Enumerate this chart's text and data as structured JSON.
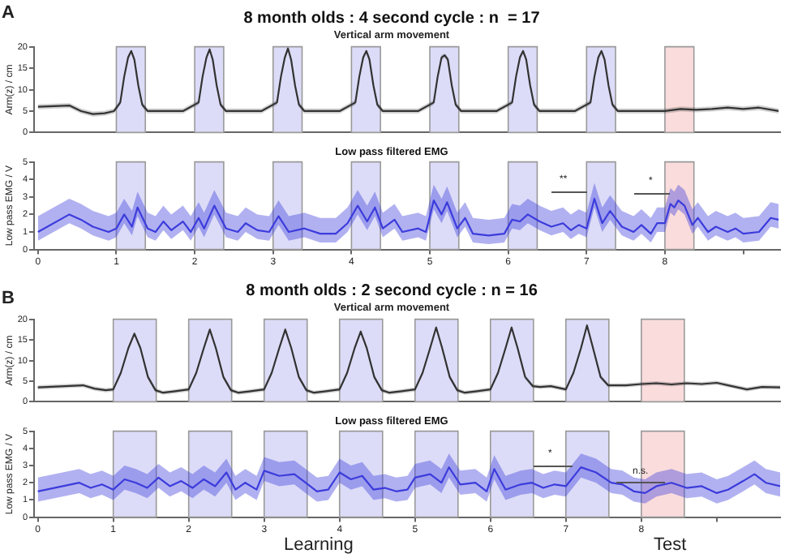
{
  "chart_data": [
    {
      "type": "line",
      "title": "8 month olds : 4 second cycle : n  = 17",
      "subtitle": "Vertical arm movement",
      "ylabel": "Arm(z) / cm",
      "annotations": [
        "A"
      ],
      "xlim": [
        -0.05,
        9.47
      ],
      "ylim": [
        0,
        20
      ],
      "yticks": [
        0,
        5,
        10,
        15,
        20
      ],
      "tick_labels": "y",
      "bands": [
        {
          "axis": "x",
          "from": 1,
          "to": 1.37,
          "color": "#dcdcf8"
        },
        {
          "axis": "x",
          "from": 2,
          "to": 2.37,
          "color": "#dcdcf8"
        },
        {
          "axis": "x",
          "from": 3,
          "to": 3.37,
          "color": "#dcdcf8"
        },
        {
          "axis": "x",
          "from": 4,
          "to": 4.37,
          "color": "#dcdcf8"
        },
        {
          "axis": "x",
          "from": 5,
          "to": 5.37,
          "color": "#dcdcf8"
        },
        {
          "axis": "x",
          "from": 6,
          "to": 6.37,
          "color": "#dcdcf8"
        },
        {
          "axis": "x",
          "from": 7,
          "to": 7.37,
          "color": "#dcdcf8"
        },
        {
          "axis": "x",
          "from": 8,
          "to": 8.37,
          "color": "#fadcdc"
        }
      ],
      "series": [
        {
          "color": "#333333",
          "x": [
            0,
            0.4,
            0.55,
            0.7,
            0.85,
            0.97,
            1.05,
            1.1,
            1.15,
            1.19,
            1.23,
            1.28,
            1.33,
            1.4,
            1.6,
            1.85,
            2.05,
            2.1,
            2.15,
            2.19,
            2.23,
            2.28,
            2.33,
            2.4,
            2.6,
            2.85,
            3.05,
            3.1,
            3.15,
            3.19,
            3.23,
            3.28,
            3.33,
            3.4,
            3.6,
            3.85,
            4.05,
            4.1,
            4.15,
            4.19,
            4.23,
            4.28,
            4.33,
            4.4,
            4.6,
            4.85,
            5.05,
            5.1,
            5.15,
            5.19,
            5.23,
            5.28,
            5.33,
            5.4,
            5.6,
            5.85,
            6.05,
            6.1,
            6.15,
            6.19,
            6.23,
            6.28,
            6.33,
            6.4,
            6.6,
            6.85,
            7.05,
            7.1,
            7.15,
            7.19,
            7.23,
            7.28,
            7.33,
            7.4,
            7.6,
            7.85,
            8.0,
            8.2,
            8.4,
            8.6,
            8.8,
            9.0,
            9.2,
            9.45
          ],
          "values": [
            6,
            6.3,
            5,
            4.3,
            4.5,
            5,
            7,
            13,
            17.5,
            19,
            17,
            11,
            6.5,
            5,
            5,
            5,
            7,
            13,
            17.5,
            19.4,
            17,
            11,
            6.5,
            5,
            5,
            5,
            7,
            13,
            17.5,
            19.6,
            17,
            11,
            6.5,
            5,
            5,
            5,
            7,
            13,
            17.5,
            19,
            17,
            11,
            6.5,
            5,
            5,
            5,
            7,
            13,
            17.5,
            18,
            17,
            11,
            6.5,
            5,
            5,
            5,
            7,
            13,
            17.5,
            19,
            17,
            11,
            6.5,
            5,
            5,
            5,
            7,
            13,
            17.5,
            19,
            17,
            11,
            6.5,
            5,
            5,
            5,
            5,
            5.5,
            5.3,
            5.5,
            5.8,
            5.5,
            5.8,
            5
          ],
          "lower": [
            5.4,
            5.7,
            4.4,
            3.7,
            3.9,
            4.4,
            6.4,
            12.4,
            16.9,
            18.4,
            16.4,
            10.4,
            5.9,
            4.4,
            4.4,
            4.4,
            6.4,
            12.4,
            16.9,
            18.8,
            16.4,
            10.4,
            5.9,
            4.4,
            4.4,
            4.4,
            6.4,
            12.4,
            16.9,
            19.0,
            16.4,
            10.4,
            5.9,
            4.4,
            4.4,
            4.4,
            6.4,
            12.4,
            16.9,
            18.4,
            16.4,
            10.4,
            5.9,
            4.4,
            4.4,
            4.4,
            6.4,
            12.4,
            16.9,
            17.4,
            16.4,
            10.4,
            5.9,
            4.4,
            4.4,
            4.4,
            6.4,
            12.4,
            16.9,
            18.4,
            16.4,
            10.4,
            5.9,
            4.4,
            4.4,
            4.4,
            6.4,
            12.4,
            16.9,
            18.4,
            16.4,
            10.4,
            5.9,
            4.4,
            4.4,
            4.4,
            4.4,
            4.9,
            4.7,
            4.9,
            5.2,
            4.9,
            5.2,
            4.4
          ],
          "upper": [
            6.6,
            6.9,
            5.6,
            4.9,
            5.1,
            5.6,
            7.6,
            13.6,
            18.1,
            19.4,
            17.6,
            11.6,
            7.1,
            5.6,
            5.6,
            5.6,
            7.6,
            13.6,
            18.1,
            19.8,
            17.6,
            11.6,
            7.1,
            5.6,
            5.6,
            5.6,
            7.6,
            13.6,
            18.1,
            20,
            17.6,
            11.6,
            7.1,
            5.6,
            5.6,
            5.6,
            7.6,
            13.6,
            18.1,
            19.4,
            17.6,
            11.6,
            7.1,
            5.6,
            5.6,
            5.6,
            7.6,
            13.6,
            18.1,
            18.4,
            17.6,
            11.6,
            7.1,
            5.6,
            5.6,
            5.6,
            7.6,
            13.6,
            18.1,
            19.4,
            17.6,
            11.6,
            7.1,
            5.6,
            5.6,
            5.6,
            7.6,
            13.6,
            18.1,
            19.4,
            17.6,
            11.6,
            7.1,
            5.6,
            5.6,
            5.6,
            5.6,
            6.1,
            5.9,
            6.1,
            6.4,
            6.1,
            6.4,
            5.6
          ]
        }
      ]
    },
    {
      "type": "line",
      "title": "Low pass filtered EMG",
      "ylabel": "Low pass EMG / V",
      "annotations": [
        "**",
        "*"
      ],
      "xlim": [
        -0.05,
        9.47
      ],
      "ylim": [
        0,
        5
      ],
      "yticks": [
        0,
        1,
        2,
        3,
        4,
        5
      ],
      "xticks": [
        0,
        1,
        2,
        3,
        4,
        5,
        6,
        7,
        8,
        {
          "value": 9,
          "label": null
        }
      ],
      "bands": [
        {
          "axis": "x",
          "from": 1,
          "to": 1.37,
          "color": "#dcdcf8"
        },
        {
          "axis": "x",
          "from": 2,
          "to": 2.37,
          "color": "#dcdcf8"
        },
        {
          "axis": "x",
          "from": 3,
          "to": 3.37,
          "color": "#dcdcf8"
        },
        {
          "axis": "x",
          "from": 4,
          "to": 4.37,
          "color": "#dcdcf8"
        },
        {
          "axis": "x",
          "from": 5,
          "to": 5.37,
          "color": "#dcdcf8"
        },
        {
          "axis": "x",
          "from": 6,
          "to": 6.37,
          "color": "#dcdcf8"
        },
        {
          "axis": "x",
          "from": 7,
          "to": 7.37,
          "color": "#dcdcf8"
        },
        {
          "axis": "x",
          "from": 8,
          "to": 8.37,
          "color": "#fadcdc"
        }
      ],
      "series": [
        {
          "color": "#3c3cdc",
          "x": [
            0,
            0.4,
            0.55,
            0.7,
            0.9,
            1.0,
            1.1,
            1.2,
            1.27,
            1.4,
            1.5,
            1.6,
            1.7,
            1.85,
            1.95,
            2.05,
            2.12,
            2.25,
            2.4,
            2.55,
            2.65,
            2.8,
            2.95,
            3.07,
            3.2,
            3.4,
            3.6,
            3.8,
            3.95,
            4.08,
            4.2,
            4.3,
            4.4,
            4.55,
            4.65,
            4.85,
            4.95,
            5.05,
            5.15,
            5.22,
            5.35,
            5.45,
            5.55,
            5.75,
            5.95,
            6.05,
            6.15,
            6.25,
            6.4,
            6.55,
            6.7,
            6.8,
            6.9,
            7.0,
            7.1,
            7.2,
            7.3,
            7.45,
            7.6,
            7.7,
            7.82,
            7.9,
            8.0,
            8.07,
            8.12,
            8.17,
            8.25,
            8.35,
            8.42,
            8.55,
            8.65,
            8.8,
            8.9,
            9.0,
            9.2,
            9.35,
            9.45
          ],
          "values": [
            1.0,
            2.0,
            1.7,
            1.3,
            1.0,
            1.2,
            2.0,
            1.3,
            2.4,
            1.2,
            1.0,
            1.6,
            1.1,
            1.6,
            1.0,
            1.8,
            1.2,
            2.5,
            1.2,
            1.0,
            1.5,
            1.1,
            1.0,
            1.9,
            1.0,
            1.2,
            0.9,
            0.9,
            1.5,
            2.5,
            1.6,
            2.4,
            1.2,
            1.7,
            1.0,
            1.2,
            1.0,
            2.8,
            2.0,
            2.7,
            1.2,
            1.8,
            0.9,
            0.8,
            0.9,
            1.7,
            1.6,
            2.0,
            1.6,
            1.3,
            1.5,
            1.1,
            1.4,
            1.2,
            2.9,
            1.5,
            2.2,
            1.3,
            1.0,
            1.4,
            0.9,
            1.5,
            1.5,
            2.6,
            2.4,
            2.8,
            2.5,
            1.4,
            1.8,
            1.0,
            1.3,
            1.0,
            1.2,
            0.9,
            1.0,
            1.8,
            1.7
          ],
          "lower": [
            0.5,
            1.5,
            1.2,
            0.8,
            0.5,
            0.7,
            1.5,
            0.8,
            1.9,
            0.7,
            0.5,
            1.1,
            0.6,
            1.1,
            0.5,
            1.3,
            0.7,
            2.0,
            0.7,
            0.5,
            1.0,
            0.6,
            0.5,
            1.4,
            0.5,
            0.7,
            0.4,
            0.4,
            1.0,
            2.0,
            1.1,
            1.9,
            0.7,
            1.2,
            0.5,
            0.7,
            0.5,
            2.3,
            1.5,
            2.2,
            0.7,
            1.3,
            0.4,
            0.3,
            0.4,
            1.2,
            1.1,
            1.5,
            1.1,
            0.8,
            1.0,
            0.6,
            0.9,
            0.7,
            2.4,
            1.0,
            1.7,
            0.8,
            0.5,
            0.9,
            0.4,
            1.0,
            1.0,
            2.1,
            1.9,
            2.3,
            2.0,
            0.9,
            1.3,
            0.5,
            0.8,
            0.5,
            0.7,
            0.4,
            0.5,
            1.3,
            1.2
          ],
          "upper": [
            1.9,
            2.9,
            2.6,
            2.2,
            1.9,
            2.1,
            2.9,
            2.2,
            3.3,
            2.1,
            1.9,
            2.5,
            2.0,
            2.5,
            1.9,
            2.7,
            2.1,
            3.4,
            2.1,
            1.9,
            2.4,
            2.0,
            1.9,
            2.8,
            1.9,
            2.1,
            1.8,
            1.8,
            2.4,
            3.4,
            2.5,
            3.3,
            2.1,
            2.6,
            1.9,
            2.1,
            1.9,
            3.7,
            2.9,
            3.6,
            2.1,
            2.7,
            1.8,
            1.7,
            1.8,
            2.6,
            2.5,
            2.9,
            2.5,
            2.2,
            2.4,
            2.0,
            2.3,
            2.1,
            3.8,
            2.4,
            3.1,
            2.2,
            1.9,
            2.3,
            1.8,
            2.4,
            2.4,
            3.5,
            3.3,
            3.7,
            3.4,
            2.3,
            2.7,
            1.9,
            2.2,
            1.9,
            2.1,
            1.8,
            1.9,
            2.7,
            2.6
          ]
        }
      ]
    },
    {
      "type": "line",
      "title": "8 month olds : 2 second cycle : n = 16",
      "subtitle": "Vertical arm movement",
      "ylabel": "Arm(z) / cm",
      "annotations": [
        "B"
      ],
      "xlim": [
        -0.05,
        9.84
      ],
      "ylim": [
        0,
        20
      ],
      "yticks": [
        0,
        5,
        10,
        15,
        20
      ],
      "tick_labels": "y",
      "bands": [
        {
          "axis": "x",
          "from": 1,
          "to": 1.57,
          "color": "#dcdcf8"
        },
        {
          "axis": "x",
          "from": 2,
          "to": 2.57,
          "color": "#dcdcf8"
        },
        {
          "axis": "x",
          "from": 3,
          "to": 3.57,
          "color": "#dcdcf8"
        },
        {
          "axis": "x",
          "from": 4,
          "to": 4.57,
          "color": "#dcdcf8"
        },
        {
          "axis": "x",
          "from": 5,
          "to": 5.57,
          "color": "#dcdcf8"
        },
        {
          "axis": "x",
          "from": 6,
          "to": 6.57,
          "color": "#dcdcf8"
        },
        {
          "axis": "x",
          "from": 7,
          "to": 7.57,
          "color": "#dcdcf8"
        },
        {
          "axis": "x",
          "from": 8,
          "to": 8.57,
          "color": "#fadcdc"
        }
      ],
      "series": [
        {
          "color": "#333333",
          "x": [
            0,
            0.6,
            0.75,
            0.9,
            1.0,
            1.1,
            1.2,
            1.28,
            1.36,
            1.46,
            1.56,
            1.66,
            1.8,
            2.0,
            2.1,
            2.2,
            2.28,
            2.36,
            2.46,
            2.56,
            2.66,
            2.8,
            3.0,
            3.1,
            3.2,
            3.28,
            3.36,
            3.46,
            3.56,
            3.66,
            3.8,
            4.0,
            4.1,
            4.2,
            4.28,
            4.36,
            4.46,
            4.56,
            4.66,
            4.8,
            5.0,
            5.1,
            5.2,
            5.28,
            5.36,
            5.46,
            5.56,
            5.66,
            5.8,
            6.0,
            6.1,
            6.2,
            6.28,
            6.36,
            6.46,
            6.56,
            6.66,
            6.8,
            7.0,
            7.1,
            7.2,
            7.28,
            7.36,
            7.46,
            7.56,
            7.66,
            7.8,
            8.0,
            8.2,
            8.4,
            8.6,
            8.8,
            9.0,
            9.2,
            9.4,
            9.6,
            9.84
          ],
          "values": [
            3.5,
            4,
            3.2,
            2.8,
            3,
            7,
            13,
            16.5,
            13,
            6,
            2.8,
            2.2,
            2.5,
            3,
            7,
            13,
            17.5,
            13,
            6,
            2.8,
            2.2,
            2.5,
            3,
            7,
            13,
            17.5,
            13,
            6,
            2.8,
            2.2,
            2.5,
            3,
            7,
            13,
            17,
            13,
            6,
            2.8,
            2.2,
            2.5,
            3,
            7,
            13,
            18,
            13,
            6,
            2.8,
            2.2,
            2.5,
            3,
            7,
            13,
            18,
            13,
            6,
            3.8,
            3.6,
            3.8,
            3,
            7,
            13,
            18.5,
            13,
            6,
            4,
            4,
            4,
            4.3,
            4.5,
            4.2,
            4.5,
            4.3,
            4.6,
            3.8,
            3.0,
            3.6,
            3.5
          ],
          "lower": [
            3.0,
            3.5,
            2.7,
            2.3,
            2.5,
            6.5,
            12.5,
            16,
            12.5,
            5.5,
            2.3,
            1.7,
            2.0,
            2.5,
            6.5,
            12.5,
            17,
            12.5,
            5.5,
            2.3,
            1.7,
            2.0,
            2.5,
            6.5,
            12.5,
            17,
            12.5,
            5.5,
            2.3,
            1.7,
            2.0,
            2.5,
            6.5,
            12.5,
            16.5,
            12.5,
            5.5,
            2.3,
            1.7,
            2.0,
            2.5,
            6.5,
            12.5,
            17.5,
            12.5,
            5.5,
            2.3,
            1.7,
            2.0,
            2.5,
            6.5,
            12.5,
            17.5,
            12.5,
            5.5,
            3.3,
            3.1,
            3.3,
            2.5,
            6.5,
            12.5,
            18,
            12.5,
            5.5,
            3.5,
            3.5,
            3.5,
            3.8,
            4.0,
            3.7,
            4.0,
            3.8,
            4.1,
            3.3,
            2.5,
            3.1,
            3.0
          ],
          "upper": [
            4.0,
            4.5,
            3.7,
            3.3,
            3.5,
            7.5,
            13.5,
            17,
            13.5,
            6.5,
            3.3,
            2.7,
            3.0,
            3.5,
            7.5,
            13.5,
            18,
            13.5,
            6.5,
            3.3,
            2.7,
            3.0,
            3.5,
            7.5,
            13.5,
            18,
            13.5,
            6.5,
            3.3,
            2.7,
            3.0,
            3.5,
            7.5,
            13.5,
            17.5,
            13.5,
            6.5,
            3.3,
            2.7,
            3.0,
            3.5,
            7.5,
            13.5,
            18.5,
            13.5,
            6.5,
            3.3,
            2.7,
            3.0,
            3.5,
            7.5,
            13.5,
            18.5,
            13.5,
            6.5,
            4.3,
            4.1,
            4.3,
            3.5,
            7.5,
            13.5,
            19,
            13.5,
            6.5,
            4.5,
            4.5,
            4.5,
            4.8,
            5.0,
            4.7,
            5.0,
            4.8,
            5.1,
            4.3,
            3.5,
            4.1,
            4.0
          ]
        }
      ]
    },
    {
      "type": "line",
      "title": "Low pass filtered EMG",
      "ylabel": "Low pass EMG / V",
      "annotations": [
        "*",
        "n.s.",
        "Learning",
        "Test"
      ],
      "xlim": [
        -0.05,
        9.84
      ],
      "ylim": [
        0,
        5
      ],
      "yticks": [
        0,
        1,
        2,
        3,
        4,
        5
      ],
      "xticks": [
        0,
        1,
        2,
        3,
        4,
        5,
        6,
        7,
        8,
        {
          "value": 9,
          "label": null
        }
      ],
      "bands": [
        {
          "axis": "x",
          "from": 1,
          "to": 1.57,
          "color": "#dcdcf8"
        },
        {
          "axis": "x",
          "from": 2,
          "to": 2.57,
          "color": "#dcdcf8"
        },
        {
          "axis": "x",
          "from": 3,
          "to": 3.57,
          "color": "#dcdcf8"
        },
        {
          "axis": "x",
          "from": 4,
          "to": 4.57,
          "color": "#dcdcf8"
        },
        {
          "axis": "x",
          "from": 5,
          "to": 5.57,
          "color": "#dcdcf8"
        },
        {
          "axis": "x",
          "from": 6,
          "to": 6.57,
          "color": "#dcdcf8"
        },
        {
          "axis": "x",
          "from": 7,
          "to": 7.57,
          "color": "#dcdcf8"
        },
        {
          "axis": "x",
          "from": 8,
          "to": 8.57,
          "color": "#fadcdc"
        }
      ],
      "series": [
        {
          "color": "#3c3cdc",
          "x": [
            0,
            0.55,
            0.7,
            0.85,
            1.0,
            1.15,
            1.3,
            1.45,
            1.6,
            1.75,
            1.9,
            2.05,
            2.2,
            2.35,
            2.5,
            2.62,
            2.75,
            2.9,
            3.0,
            3.2,
            3.4,
            3.55,
            3.7,
            3.85,
            4.0,
            4.15,
            4.3,
            4.45,
            4.6,
            4.75,
            4.9,
            5.0,
            5.2,
            5.35,
            5.45,
            5.6,
            5.8,
            5.95,
            6.05,
            6.2,
            6.4,
            6.55,
            6.7,
            6.85,
            7.0,
            7.2,
            7.4,
            7.6,
            7.75,
            7.9,
            8.05,
            8.2,
            8.4,
            8.6,
            8.8,
            9.0,
            9.15,
            9.35,
            9.5,
            9.65,
            9.84
          ],
          "values": [
            1.5,
            2.0,
            1.7,
            1.9,
            1.6,
            2.2,
            2.0,
            1.7,
            2.3,
            1.8,
            2.1,
            1.7,
            2.2,
            1.8,
            2.6,
            1.6,
            2.0,
            1.6,
            2.7,
            2.4,
            2.5,
            2.0,
            1.5,
            1.6,
            2.6,
            2.2,
            2.4,
            1.6,
            1.7,
            1.5,
            1.6,
            2.3,
            2.5,
            2.0,
            2.9,
            1.9,
            2.0,
            1.5,
            2.8,
            1.6,
            1.9,
            2.0,
            1.7,
            1.9,
            1.8,
            2.9,
            2.6,
            2.0,
            1.9,
            1.5,
            1.4,
            1.8,
            2.0,
            1.7,
            1.8,
            1.4,
            1.6,
            2.1,
            2.5,
            2.0,
            1.8
          ],
          "lower": [
            0.9,
            1.4,
            1.1,
            1.3,
            1.0,
            1.6,
            1.4,
            1.1,
            1.7,
            1.2,
            1.5,
            1.1,
            1.6,
            1.2,
            2.0,
            1.0,
            1.4,
            1.0,
            2.1,
            1.8,
            1.9,
            1.4,
            0.9,
            1.0,
            2.0,
            1.6,
            1.8,
            1.0,
            1.1,
            0.9,
            1.0,
            1.7,
            1.9,
            1.4,
            2.3,
            1.3,
            1.4,
            0.9,
            2.2,
            1.0,
            1.3,
            1.4,
            1.1,
            1.3,
            1.2,
            2.3,
            2.0,
            1.4,
            1.3,
            0.9,
            0.8,
            1.2,
            1.4,
            1.1,
            1.2,
            0.8,
            1.0,
            1.5,
            1.9,
            1.4,
            1.2
          ],
          "upper": [
            2.3,
            2.8,
            2.5,
            2.7,
            2.4,
            3.0,
            2.8,
            2.5,
            3.1,
            2.6,
            2.9,
            2.5,
            3.0,
            2.6,
            3.4,
            2.4,
            2.8,
            2.4,
            3.5,
            3.2,
            3.3,
            2.8,
            2.3,
            2.4,
            3.4,
            3.0,
            3.2,
            2.4,
            2.5,
            2.3,
            2.4,
            3.1,
            3.3,
            2.8,
            3.7,
            2.7,
            2.8,
            2.3,
            3.6,
            2.4,
            2.7,
            2.8,
            2.5,
            2.7,
            2.6,
            3.7,
            3.4,
            2.8,
            2.7,
            2.3,
            2.2,
            2.6,
            2.8,
            2.5,
            2.6,
            2.2,
            2.4,
            2.9,
            3.3,
            2.8,
            2.6
          ]
        }
      ]
    }
  ]
}
